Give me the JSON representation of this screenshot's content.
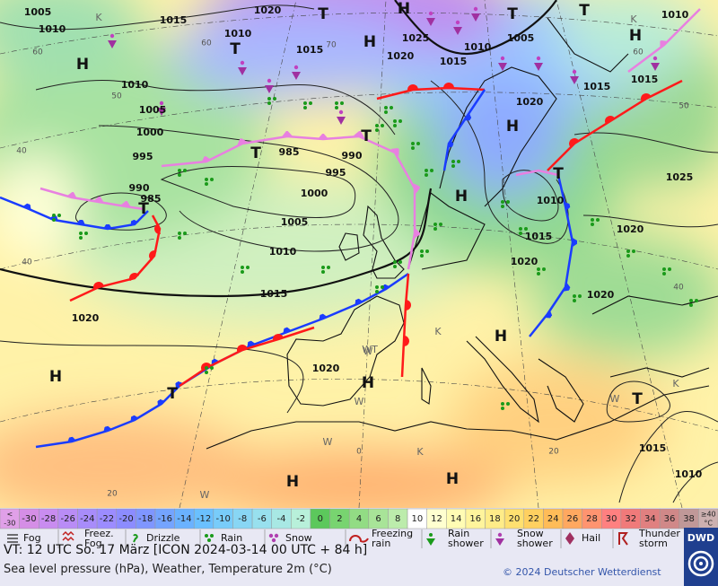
{
  "map": {
    "pressure_labels": [
      "1005",
      "1010",
      "1015",
      "1020",
      "1010",
      "1015",
      "1025",
      "1020",
      "1015",
      "1010",
      "1005",
      "1010",
      "1015",
      "1015",
      "1020",
      "1010",
      "1005",
      "1000",
      "995",
      "985",
      "990",
      "995",
      "990",
      "985",
      "1000",
      "1005",
      "1010",
      "1015",
      "1020",
      "1020",
      "1010",
      "1015",
      "1020",
      "1020",
      "1025",
      "1020",
      "1015",
      "1010"
    ],
    "pressure_centers": [
      "T",
      "H",
      "T",
      "H",
      "T",
      "T",
      "H",
      "H",
      "T",
      "T",
      "H",
      "T",
      "H",
      "T",
      "H",
      "H",
      "T",
      "H",
      "T",
      "H",
      "H"
    ],
    "latitude_labels": [
      "60",
      "50",
      "40",
      "40",
      "60",
      "70",
      "60",
      "50",
      "40",
      "20",
      "20",
      "0"
    ],
    "air_mass_labels": [
      "K",
      "K",
      "K",
      "W",
      "WT",
      "W",
      "W",
      "K",
      "W",
      "K",
      "W"
    ]
  },
  "color_scale": {
    "lower_label": [
      "<",
      "-30"
    ],
    "values": [
      -30,
      -28,
      -26,
      -24,
      -22,
      -20,
      -18,
      -16,
      -14,
      -12,
      -10,
      -8,
      -6,
      -4,
      -2,
      0,
      2,
      4,
      6,
      8,
      10,
      12,
      14,
      16,
      18,
      20,
      22,
      24,
      26,
      28,
      30,
      32,
      34,
      36,
      38
    ],
    "colors": [
      "#d58ee6",
      "#c98cf0",
      "#b98cf6",
      "#a88cfa",
      "#9c8cff",
      "#8c8cff",
      "#7f96ff",
      "#74a4ff",
      "#6ab2ff",
      "#6ac0ff",
      "#78ccfa",
      "#88d6f4",
      "#98e0ee",
      "#a8e8e4",
      "#b8f0da",
      "#5cc85c",
      "#78d470",
      "#92dc84",
      "#a8e498",
      "#bcecac",
      "#ffffff",
      "#ffffd0",
      "#fffcb4",
      "#fff49c",
      "#ffec88",
      "#ffe070",
      "#ffd060",
      "#ffbc58",
      "#ffa860",
      "#ff9470",
      "#ff8080",
      "#f07a7a",
      "#e08080",
      "#d08888",
      "#c09898"
    ],
    "lower_color": "#e0a0e8",
    "upper_label": [
      "≥40",
      "°C"
    ],
    "upper_color": "#ccb0b0"
  },
  "weather_legend": [
    {
      "label": [
        "Fog"
      ]
    },
    {
      "label": [
        "Freez.",
        "Fog"
      ]
    },
    {
      "label": [
        "Drizzle"
      ]
    },
    {
      "label": [
        "Rain"
      ]
    },
    {
      "label": [
        "Snow"
      ]
    },
    {
      "label": [
        "Freezing",
        "rain"
      ]
    },
    {
      "label": [
        "Rain",
        "shower"
      ]
    },
    {
      "label": [
        "Snow",
        "shower"
      ]
    },
    {
      "label": [
        "Hail"
      ]
    },
    {
      "label": [
        "Thunder",
        "storm"
      ]
    }
  ],
  "footer": {
    "valid_time": "VT: 12 UTC So.  17 März [ICON 2024-03-14  00 UTC + 84 h]",
    "description": "Sea level pressure (hPa), Weather, Temperature 2m (°C)",
    "copyright": "© 2024 Deutscher Wetterdienst",
    "logo": "DWD"
  }
}
